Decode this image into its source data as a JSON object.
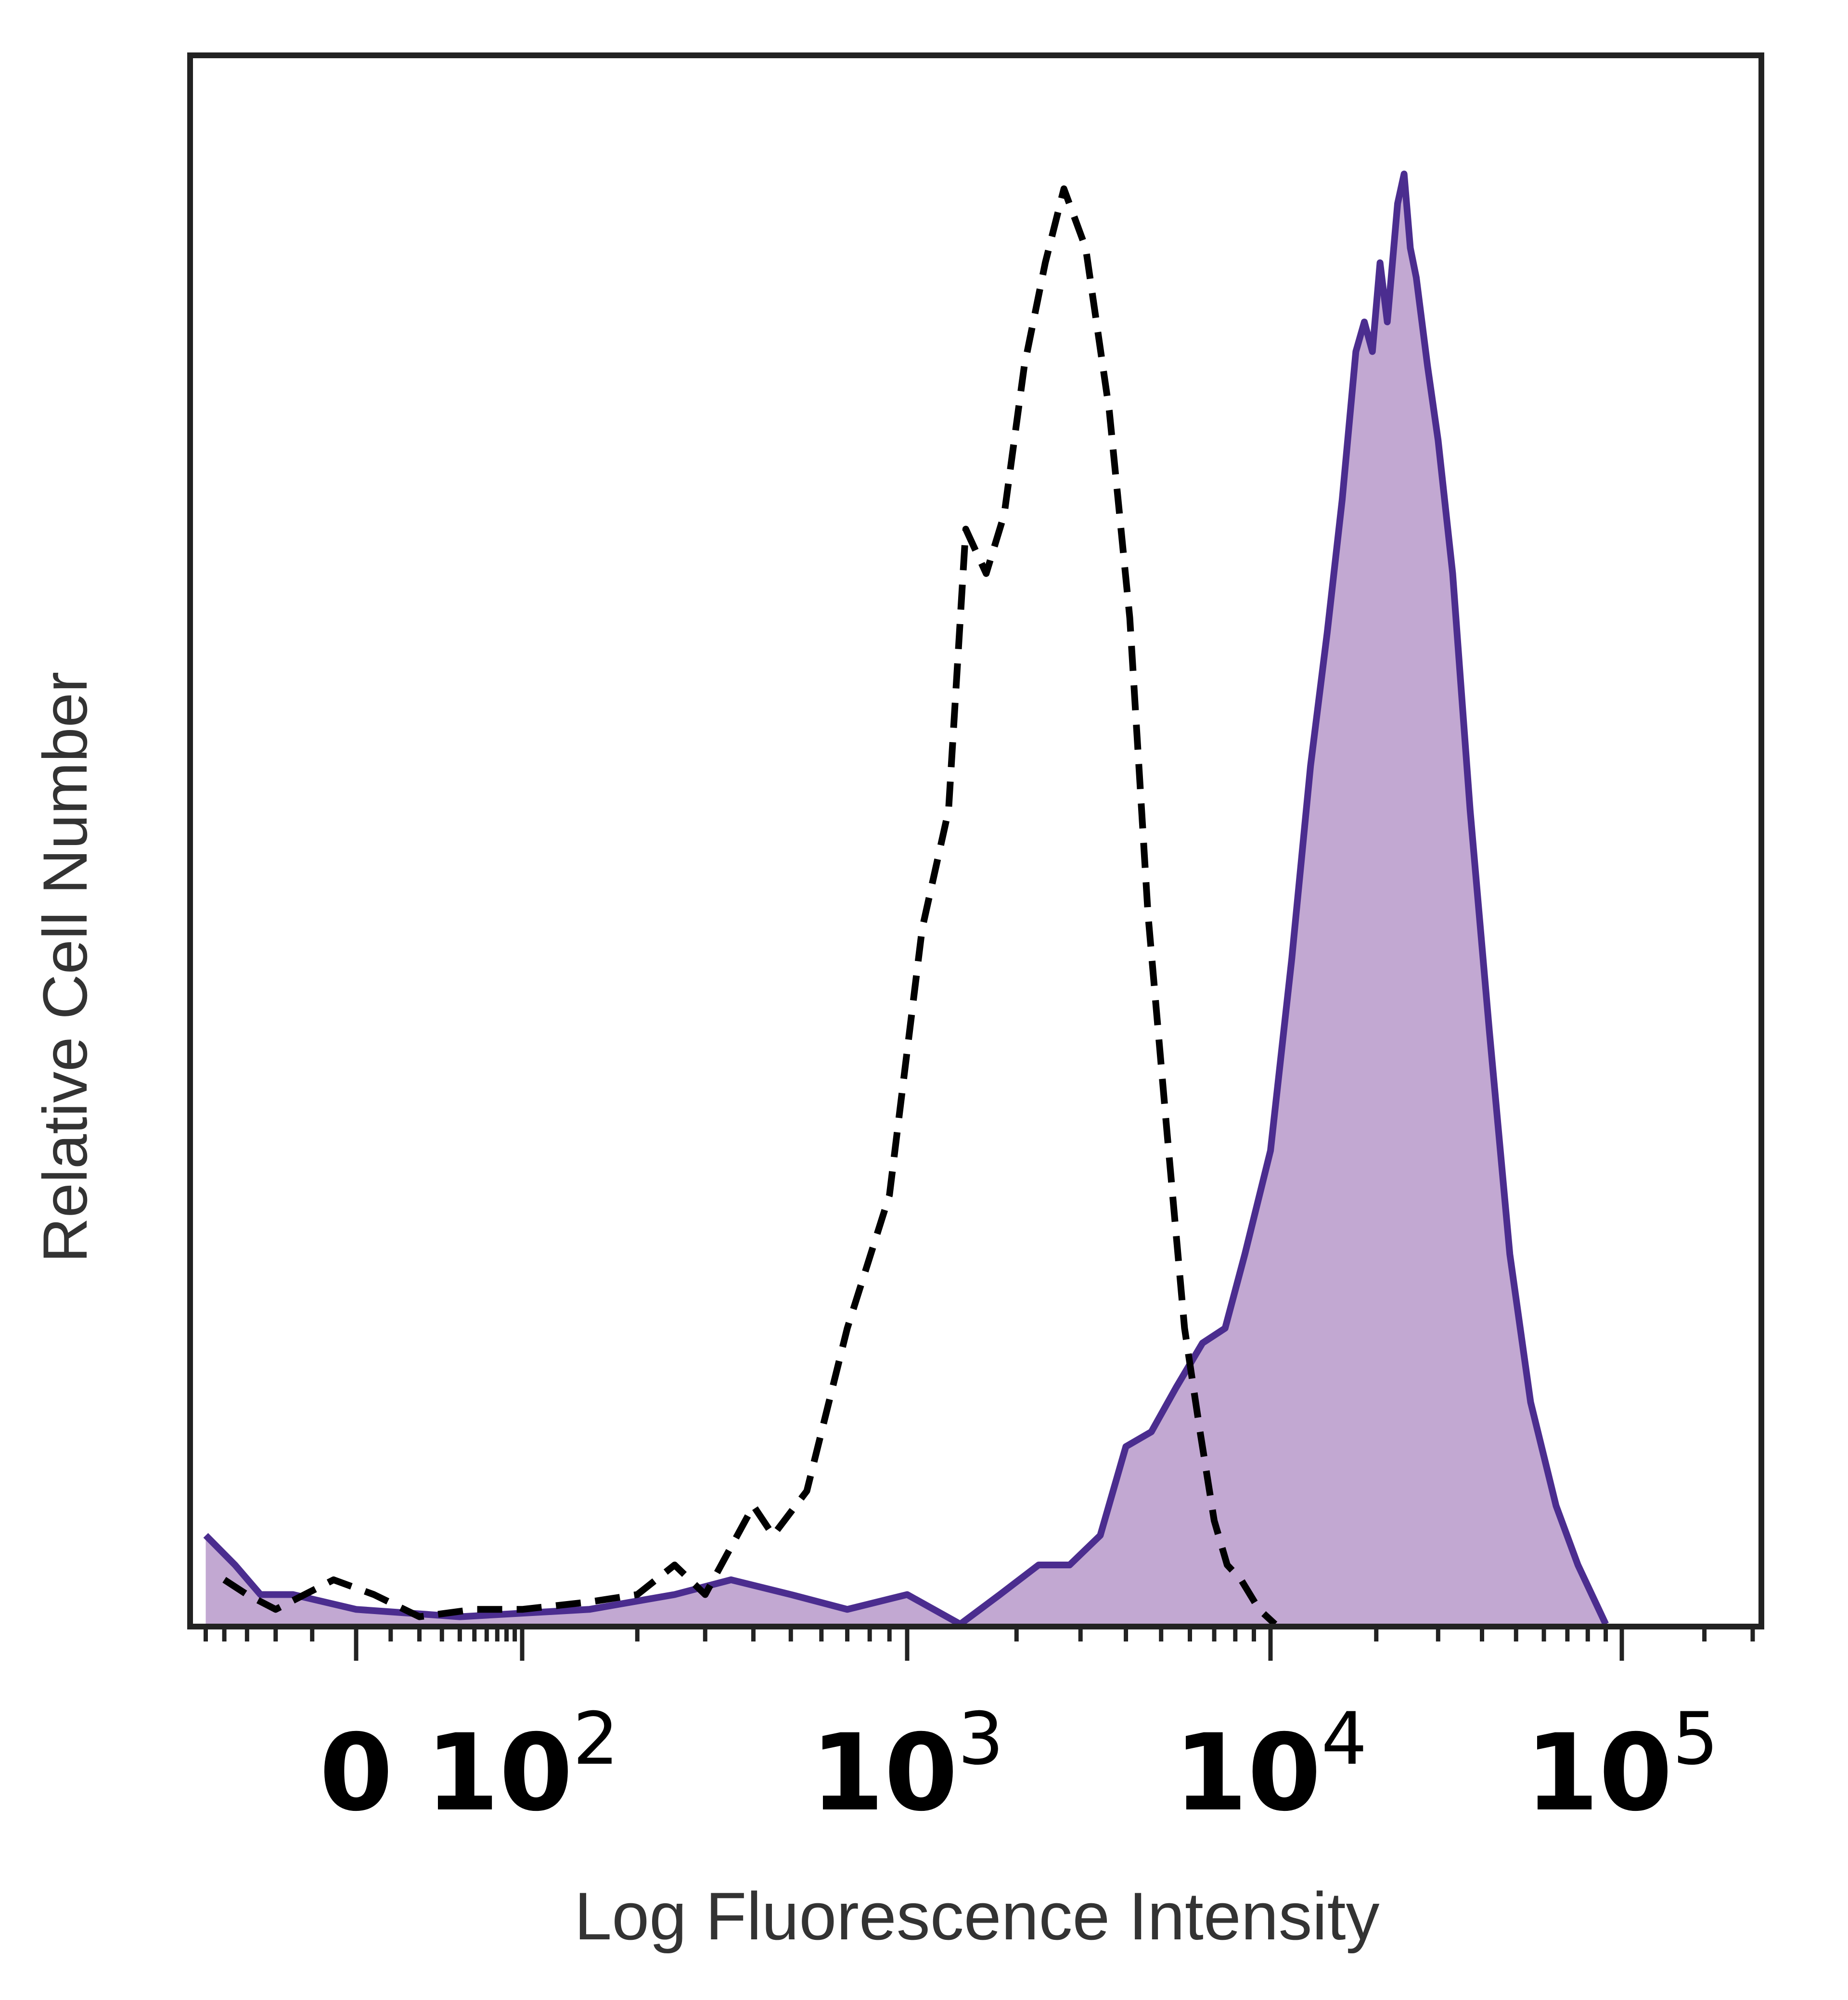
{
  "chart_data": {
    "type": "area",
    "title": "",
    "xlabel": "Log Fluorescence Intensity",
    "ylabel": "Relative Cell Number",
    "x_scale": "biexponential",
    "x_ticks": [
      {
        "value": 0,
        "base": "0",
        "exp": ""
      },
      {
        "value": 100,
        "base": "10",
        "exp": "2"
      },
      {
        "value": 1000,
        "base": "10",
        "exp": "3"
      },
      {
        "value": 10000,
        "base": "10",
        "exp": "4"
      },
      {
        "value": 100000,
        "base": "10",
        "exp": "5"
      }
    ],
    "ylim": [
      0,
      100
    ],
    "grid": false,
    "series": [
      {
        "style": "dashed-line",
        "color": "#000000",
        "points": [
          [
            -40,
            3
          ],
          [
            -30,
            2
          ],
          [
            -20,
            1
          ],
          [
            -5,
            3
          ],
          [
            5,
            2
          ],
          [
            20,
            0.5
          ],
          [
            50,
            1
          ],
          [
            100,
            1
          ],
          [
            150,
            1.5
          ],
          [
            200,
            2
          ],
          [
            250,
            4
          ],
          [
            300,
            2
          ],
          [
            400,
            8
          ],
          [
            450,
            6
          ],
          [
            550,
            9
          ],
          [
            700,
            20
          ],
          [
            900,
            29
          ],
          [
            1100,
            47
          ],
          [
            1300,
            55
          ],
          [
            1450,
            74
          ],
          [
            1650,
            71
          ],
          [
            1850,
            75
          ],
          [
            2100,
            85
          ],
          [
            2400,
            92
          ],
          [
            2700,
            97
          ],
          [
            3100,
            93
          ],
          [
            3600,
            82
          ],
          [
            4100,
            68
          ],
          [
            4600,
            48
          ],
          [
            5200,
            33
          ],
          [
            5800,
            20
          ],
          [
            6400,
            13
          ],
          [
            7000,
            7
          ],
          [
            7600,
            4
          ],
          [
            8300,
            3
          ],
          [
            9300,
            1
          ],
          [
            10300,
            0
          ]
        ]
      },
      {
        "style": "filled",
        "color": "#4b2d8f",
        "fill": "#c2a8d2",
        "points": [
          [
            -50,
            6
          ],
          [
            -35,
            4
          ],
          [
            -25,
            2
          ],
          [
            -15,
            2
          ],
          [
            0,
            1
          ],
          [
            40,
            0.5
          ],
          [
            150,
            1
          ],
          [
            250,
            2
          ],
          [
            350,
            3
          ],
          [
            500,
            2
          ],
          [
            700,
            1
          ],
          [
            1000,
            2
          ],
          [
            1400,
            0
          ],
          [
            1800,
            2
          ],
          [
            2300,
            4
          ],
          [
            2800,
            4
          ],
          [
            3400,
            6
          ],
          [
            4000,
            12
          ],
          [
            4700,
            13
          ],
          [
            5500,
            16
          ],
          [
            6500,
            19
          ],
          [
            7500,
            20
          ],
          [
            8500,
            25
          ],
          [
            10000,
            32
          ],
          [
            11500,
            45
          ],
          [
            13000,
            58
          ],
          [
            14500,
            67
          ],
          [
            16000,
            76
          ],
          [
            17500,
            86
          ],
          [
            18500,
            88
          ],
          [
            19500,
            86
          ],
          [
            20500,
            92
          ],
          [
            21500,
            88
          ],
          [
            23000,
            96
          ],
          [
            24000,
            98
          ],
          [
            25000,
            93
          ],
          [
            26000,
            91
          ],
          [
            28000,
            85
          ],
          [
            30000,
            80
          ],
          [
            33000,
            71
          ],
          [
            37000,
            55
          ],
          [
            42000,
            40
          ],
          [
            48000,
            25
          ],
          [
            55000,
            15
          ],
          [
            65000,
            8
          ],
          [
            75000,
            4
          ],
          [
            90000,
            0
          ]
        ]
      }
    ]
  }
}
